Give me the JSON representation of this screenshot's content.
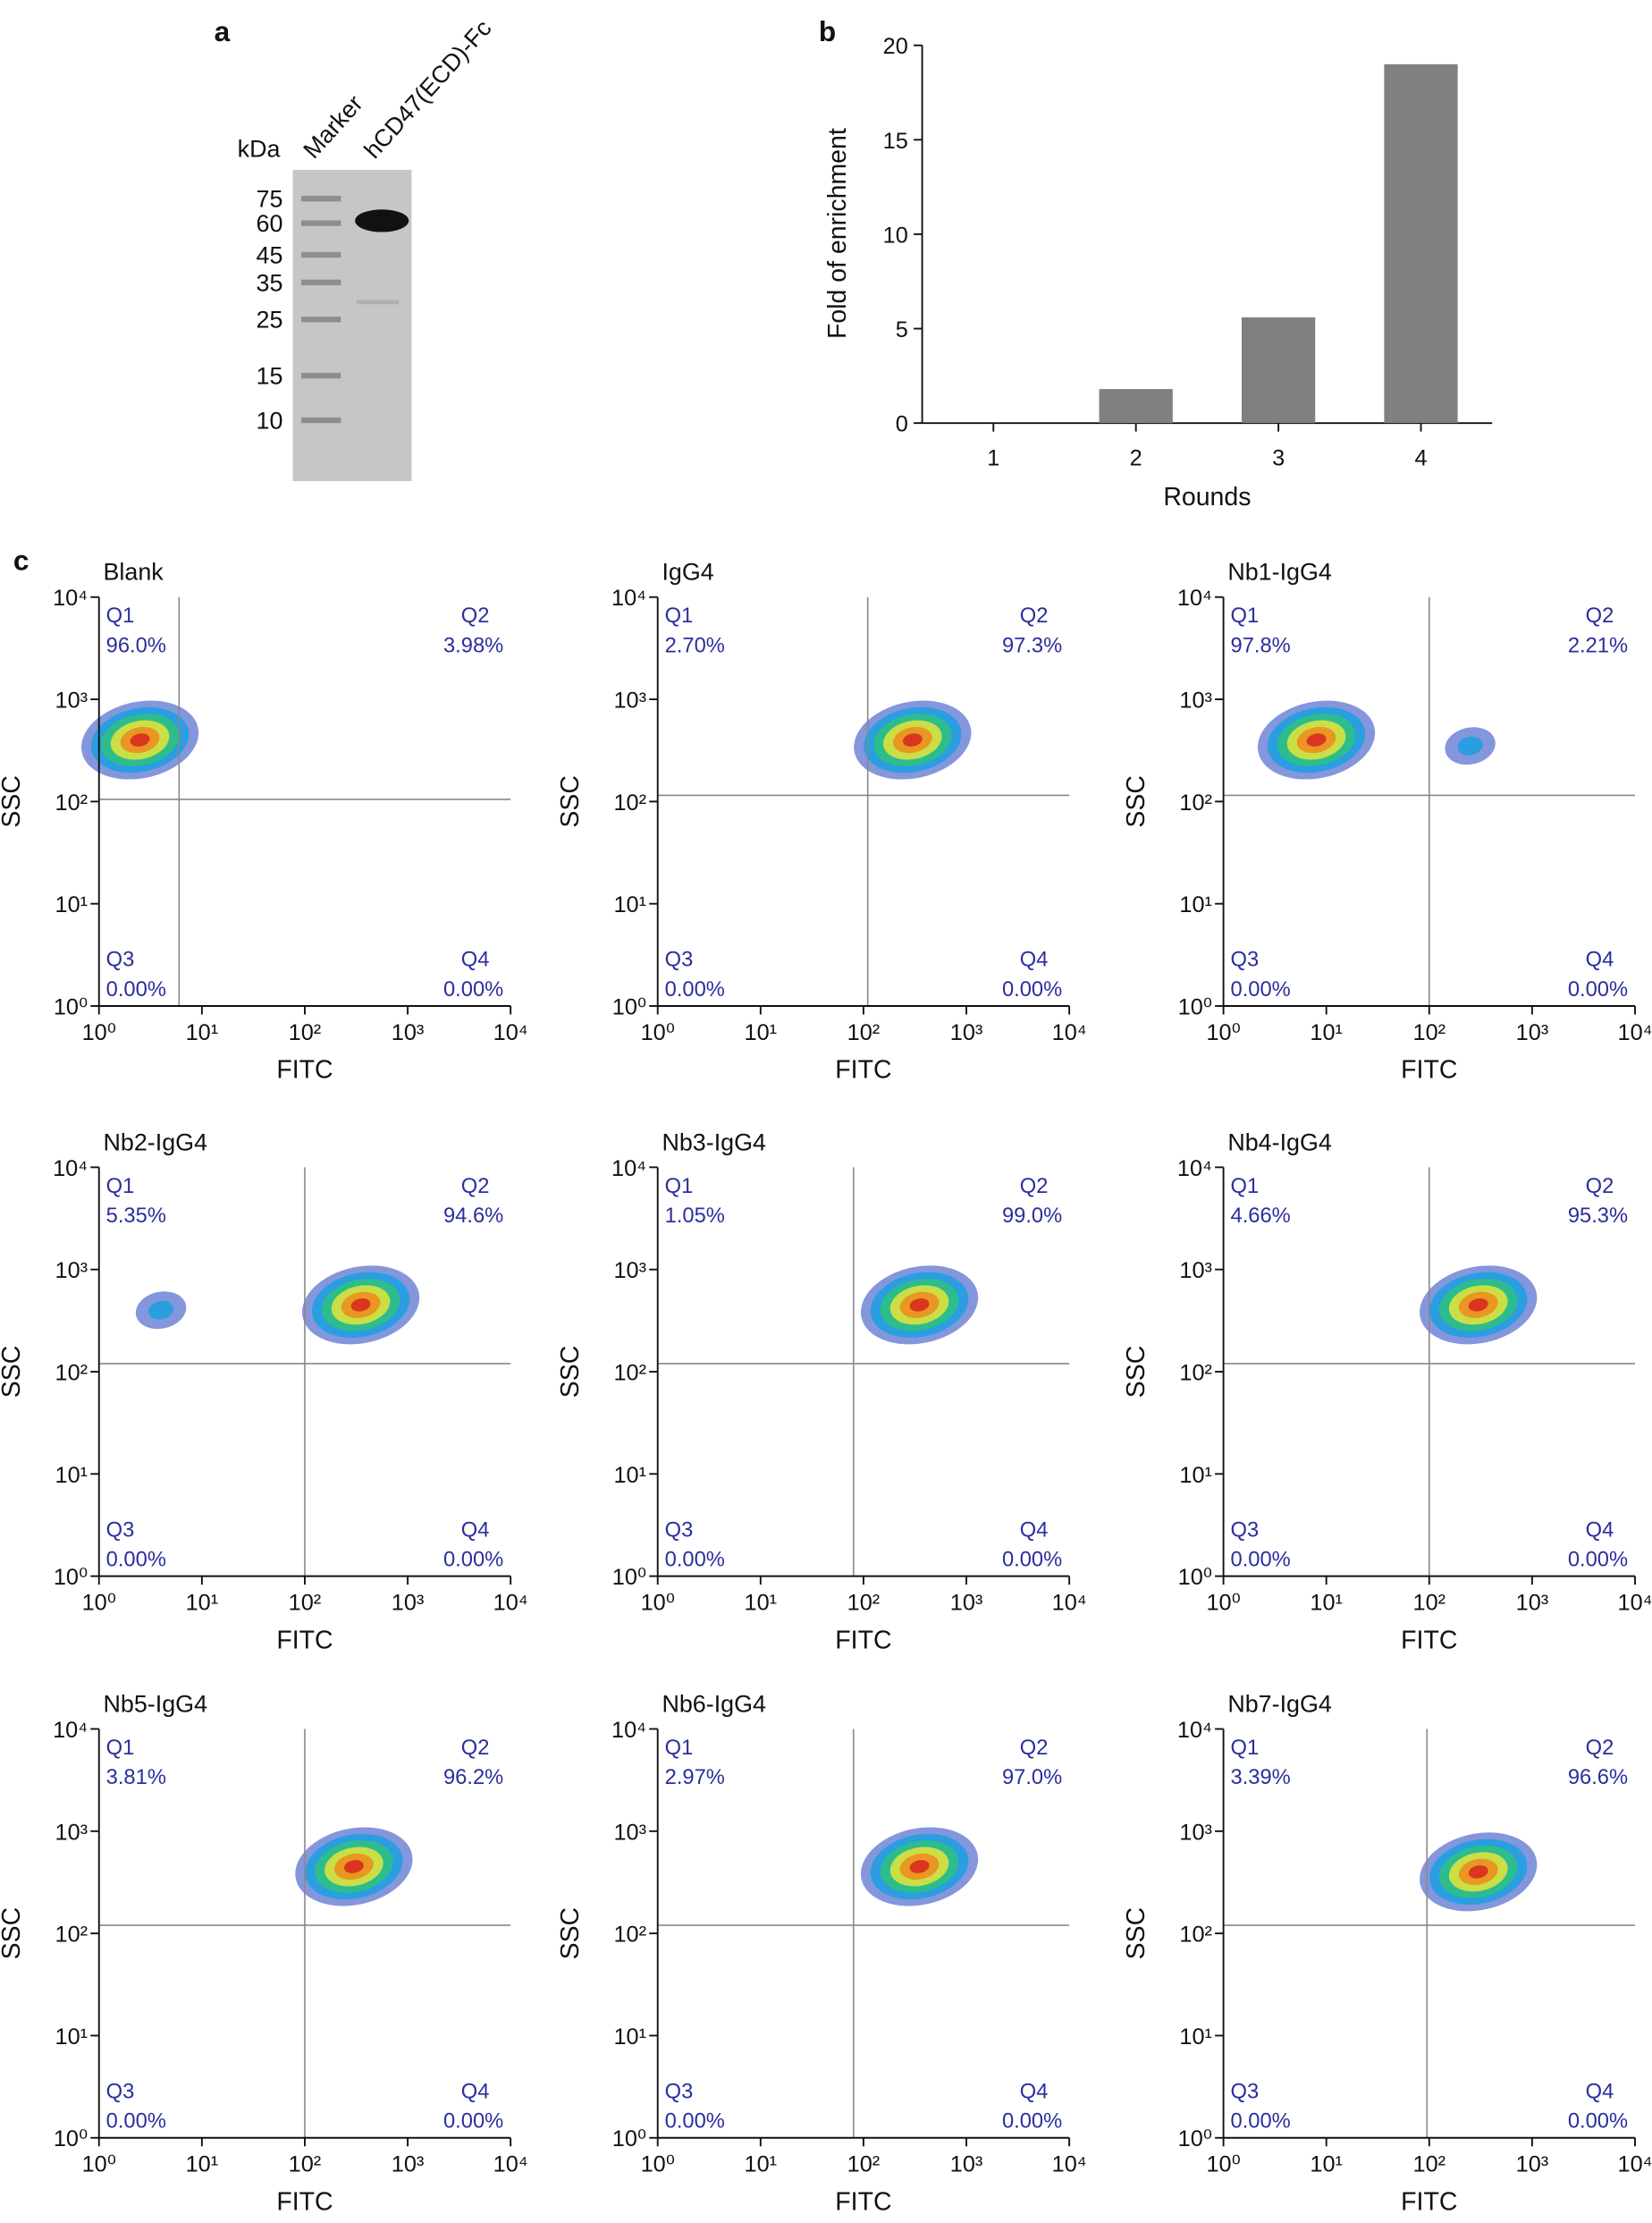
{
  "gel": {
    "panel_label": "a",
    "unit": "kDa",
    "lanes": [
      "Marker",
      "hCD47(ECD)-Fc"
    ],
    "markers": [
      75,
      60,
      45,
      35,
      25,
      15,
      10
    ]
  },
  "chart_data": [
    {
      "type": "bar",
      "panel_label": "b",
      "xlabel": "Rounds",
      "ylabel": "Fold of enrichment",
      "categories": [
        "1",
        "2",
        "3",
        "4"
      ],
      "values": [
        0,
        1.8,
        5.6,
        19
      ],
      "color": "#808080",
      "ylim": [
        0,
        20
      ],
      "yticks": [
        0,
        5,
        10,
        15,
        20
      ]
    },
    {
      "type": "scatter",
      "panel_label": "c",
      "title": "Blank",
      "xlabel": "FITC",
      "ylabel": "SSC",
      "log_scale": true,
      "xlim": [
        1,
        10000
      ],
      "ylim": [
        1,
        10000
      ],
      "xticks": [
        {
          "value": 1,
          "label": "10⁰"
        },
        {
          "value": 10,
          "label": "10¹"
        },
        {
          "value": 100,
          "label": "10²"
        },
        {
          "value": 1000,
          "label": "10³"
        },
        {
          "value": 10000,
          "label": "10⁴"
        }
      ],
      "yticks": [
        {
          "value": 1,
          "label": "10⁰"
        },
        {
          "value": 10,
          "label": "10¹"
        },
        {
          "value": 100,
          "label": "10²"
        },
        {
          "value": 1000,
          "label": "10³"
        },
        {
          "value": 10000,
          "label": "10⁴"
        }
      ],
      "gate": {
        "x": 6,
        "y": 105
      },
      "clusters": [
        {
          "x": 2.5,
          "y": 400
        }
      ],
      "quadrants": [
        {
          "name": "Q1",
          "label": "96.0%"
        },
        {
          "name": "Q2",
          "label": "3.98%"
        },
        {
          "name": "Q3",
          "label": "0.00%"
        },
        {
          "name": "Q4",
          "label": "0.00%"
        }
      ]
    },
    {
      "type": "scatter",
      "title": "IgG4",
      "xlabel": "FITC",
      "ylabel": "SSC",
      "log_scale": true,
      "xlim": [
        1,
        10000
      ],
      "ylim": [
        1,
        10000
      ],
      "xticks": [
        {
          "value": 1,
          "label": "10⁰"
        },
        {
          "value": 10,
          "label": "10¹"
        },
        {
          "value": 100,
          "label": "10²"
        },
        {
          "value": 1000,
          "label": "10³"
        },
        {
          "value": 10000,
          "label": "10⁴"
        }
      ],
      "yticks": [
        {
          "value": 1,
          "label": "10⁰"
        },
        {
          "value": 10,
          "label": "10¹"
        },
        {
          "value": 100,
          "label": "10²"
        },
        {
          "value": 1000,
          "label": "10³"
        },
        {
          "value": 10000,
          "label": "10⁴"
        }
      ],
      "gate": {
        "x": 110,
        "y": 115
      },
      "clusters": [
        {
          "x": 300,
          "y": 400
        }
      ],
      "quadrants": [
        {
          "name": "Q1",
          "label": "2.70%"
        },
        {
          "name": "Q2",
          "label": "97.3%"
        },
        {
          "name": "Q3",
          "label": "0.00%"
        },
        {
          "name": "Q4",
          "label": "0.00%"
        }
      ]
    },
    {
      "type": "scatter",
      "title": "Nb1-IgG4",
      "xlabel": "FITC",
      "ylabel": "SSC",
      "log_scale": true,
      "xlim": [
        1,
        10000
      ],
      "ylim": [
        1,
        10000
      ],
      "xticks": [
        {
          "value": 1,
          "label": "10⁰"
        },
        {
          "value": 10,
          "label": "10¹"
        },
        {
          "value": 100,
          "label": "10²"
        },
        {
          "value": 1000,
          "label": "10³"
        },
        {
          "value": 10000,
          "label": "10⁴"
        }
      ],
      "yticks": [
        {
          "value": 1,
          "label": "10⁰"
        },
        {
          "value": 10,
          "label": "10¹"
        },
        {
          "value": 100,
          "label": "10²"
        },
        {
          "value": 1000,
          "label": "10³"
        },
        {
          "value": 10000,
          "label": "10⁴"
        }
      ],
      "gate": {
        "x": 100,
        "y": 115
      },
      "clusters": [
        {
          "x": 8,
          "y": 400
        },
        {
          "x": 250,
          "y": 350
        }
      ],
      "quadrants": [
        {
          "name": "Q1",
          "label": "97.8%"
        },
        {
          "name": "Q2",
          "label": "2.21%"
        },
        {
          "name": "Q3",
          "label": "0.00%"
        },
        {
          "name": "Q4",
          "label": "0.00%"
        }
      ]
    },
    {
      "type": "scatter",
      "title": "Nb2-IgG4",
      "xlabel": "FITC",
      "ylabel": "SSC",
      "log_scale": true,
      "xlim": [
        1,
        10000
      ],
      "ylim": [
        1,
        10000
      ],
      "xticks": [
        {
          "value": 1,
          "label": "10⁰"
        },
        {
          "value": 10,
          "label": "10¹"
        },
        {
          "value": 100,
          "label": "10²"
        },
        {
          "value": 1000,
          "label": "10³"
        },
        {
          "value": 10000,
          "label": "10⁴"
        }
      ],
      "yticks": [
        {
          "value": 1,
          "label": "10⁰"
        },
        {
          "value": 10,
          "label": "10¹"
        },
        {
          "value": 100,
          "label": "10²"
        },
        {
          "value": 1000,
          "label": "10³"
        },
        {
          "value": 10000,
          "label": "10⁴"
        }
      ],
      "gate": {
        "x": 100,
        "y": 120
      },
      "clusters": [
        {
          "x": 350,
          "y": 450
        },
        {
          "x": 4,
          "y": 400
        }
      ],
      "quadrants": [
        {
          "name": "Q1",
          "label": "5.35%"
        },
        {
          "name": "Q2",
          "label": "94.6%"
        },
        {
          "name": "Q3",
          "label": "0.00%"
        },
        {
          "name": "Q4",
          "label": "0.00%"
        }
      ]
    },
    {
      "type": "scatter",
      "title": "Nb3-IgG4",
      "xlabel": "FITC",
      "ylabel": "SSC",
      "log_scale": true,
      "xlim": [
        1,
        10000
      ],
      "ylim": [
        1,
        10000
      ],
      "xticks": [
        {
          "value": 1,
          "label": "10⁰"
        },
        {
          "value": 10,
          "label": "10¹"
        },
        {
          "value": 100,
          "label": "10²"
        },
        {
          "value": 1000,
          "label": "10³"
        },
        {
          "value": 10000,
          "label": "10⁴"
        }
      ],
      "yticks": [
        {
          "value": 1,
          "label": "10⁰"
        },
        {
          "value": 10,
          "label": "10¹"
        },
        {
          "value": 100,
          "label": "10²"
        },
        {
          "value": 1000,
          "label": "10³"
        },
        {
          "value": 10000,
          "label": "10⁴"
        }
      ],
      "gate": {
        "x": 80,
        "y": 120
      },
      "clusters": [
        {
          "x": 350,
          "y": 450
        }
      ],
      "quadrants": [
        {
          "name": "Q1",
          "label": "1.05%"
        },
        {
          "name": "Q2",
          "label": "99.0%"
        },
        {
          "name": "Q3",
          "label": "0.00%"
        },
        {
          "name": "Q4",
          "label": "0.00%"
        }
      ]
    },
    {
      "type": "scatter",
      "title": "Nb4-IgG4",
      "xlabel": "FITC",
      "ylabel": "SSC",
      "log_scale": true,
      "xlim": [
        1,
        10000
      ],
      "ylim": [
        1,
        10000
      ],
      "xticks": [
        {
          "value": 1,
          "label": "10⁰"
        },
        {
          "value": 10,
          "label": "10¹"
        },
        {
          "value": 100,
          "label": "10²"
        },
        {
          "value": 1000,
          "label": "10³"
        },
        {
          "value": 10000,
          "label": "10⁴"
        }
      ],
      "yticks": [
        {
          "value": 1,
          "label": "10⁰"
        },
        {
          "value": 10,
          "label": "10¹"
        },
        {
          "value": 100,
          "label": "10²"
        },
        {
          "value": 1000,
          "label": "10³"
        },
        {
          "value": 10000,
          "label": "10⁴"
        }
      ],
      "gate": {
        "x": 100,
        "y": 120
      },
      "clusters": [
        {
          "x": 300,
          "y": 450
        }
      ],
      "quadrants": [
        {
          "name": "Q1",
          "label": "4.66%"
        },
        {
          "name": "Q2",
          "label": "95.3%"
        },
        {
          "name": "Q3",
          "label": "0.00%"
        },
        {
          "name": "Q4",
          "label": "0.00%"
        }
      ]
    },
    {
      "type": "scatter",
      "title": "Nb5-IgG4",
      "xlabel": "FITC",
      "ylabel": "SSC",
      "log_scale": true,
      "xlim": [
        1,
        10000
      ],
      "ylim": [
        1,
        10000
      ],
      "xticks": [
        {
          "value": 1,
          "label": "10⁰"
        },
        {
          "value": 10,
          "label": "10¹"
        },
        {
          "value": 100,
          "label": "10²"
        },
        {
          "value": 1000,
          "label": "10³"
        },
        {
          "value": 10000,
          "label": "10⁴"
        }
      ],
      "yticks": [
        {
          "value": 1,
          "label": "10⁰"
        },
        {
          "value": 10,
          "label": "10¹"
        },
        {
          "value": 100,
          "label": "10²"
        },
        {
          "value": 1000,
          "label": "10³"
        },
        {
          "value": 10000,
          "label": "10⁴"
        }
      ],
      "gate": {
        "x": 100,
        "y": 120
      },
      "clusters": [
        {
          "x": 300,
          "y": 450
        }
      ],
      "quadrants": [
        {
          "name": "Q1",
          "label": "3.81%"
        },
        {
          "name": "Q2",
          "label": "96.2%"
        },
        {
          "name": "Q3",
          "label": "0.00%"
        },
        {
          "name": "Q4",
          "label": "0.00%"
        }
      ]
    },
    {
      "type": "scatter",
      "title": "Nb6-IgG4",
      "xlabel": "FITC",
      "ylabel": "SSC",
      "log_scale": true,
      "xlim": [
        1,
        10000
      ],
      "ylim": [
        1,
        10000
      ],
      "xticks": [
        {
          "value": 1,
          "label": "10⁰"
        },
        {
          "value": 10,
          "label": "10¹"
        },
        {
          "value": 100,
          "label": "10²"
        },
        {
          "value": 1000,
          "label": "10³"
        },
        {
          "value": 10000,
          "label": "10⁴"
        }
      ],
      "yticks": [
        {
          "value": 1,
          "label": "10⁰"
        },
        {
          "value": 10,
          "label": "10¹"
        },
        {
          "value": 100,
          "label": "10²"
        },
        {
          "value": 1000,
          "label": "10³"
        },
        {
          "value": 10000,
          "label": "10⁴"
        }
      ],
      "gate": {
        "x": 80,
        "y": 120
      },
      "clusters": [
        {
          "x": 350,
          "y": 450
        }
      ],
      "quadrants": [
        {
          "name": "Q1",
          "label": "2.97%"
        },
        {
          "name": "Q2",
          "label": "97.0%"
        },
        {
          "name": "Q3",
          "label": "0.00%"
        },
        {
          "name": "Q4",
          "label": "0.00%"
        }
      ]
    },
    {
      "type": "scatter",
      "title": "Nb7-IgG4",
      "xlabel": "FITC",
      "ylabel": "SSC",
      "log_scale": true,
      "xlim": [
        1,
        10000
      ],
      "ylim": [
        1,
        10000
      ],
      "xticks": [
        {
          "value": 1,
          "label": "10⁰"
        },
        {
          "value": 10,
          "label": "10¹"
        },
        {
          "value": 100,
          "label": "10²"
        },
        {
          "value": 1000,
          "label": "10³"
        },
        {
          "value": 10000,
          "label": "10⁴"
        }
      ],
      "yticks": [
        {
          "value": 1,
          "label": "10⁰"
        },
        {
          "value": 10,
          "label": "10¹"
        },
        {
          "value": 100,
          "label": "10²"
        },
        {
          "value": 1000,
          "label": "10³"
        },
        {
          "value": 10000,
          "label": "10⁴"
        }
      ],
      "gate": {
        "x": 95,
        "y": 120
      },
      "clusters": [
        {
          "x": 300,
          "y": 400
        }
      ],
      "quadrants": [
        {
          "name": "Q1",
          "label": "3.39%"
        },
        {
          "name": "Q2",
          "label": "96.6%"
        },
        {
          "name": "Q3",
          "label": "0.00%"
        },
        {
          "name": "Q4",
          "label": "0.00%"
        }
      ]
    }
  ]
}
